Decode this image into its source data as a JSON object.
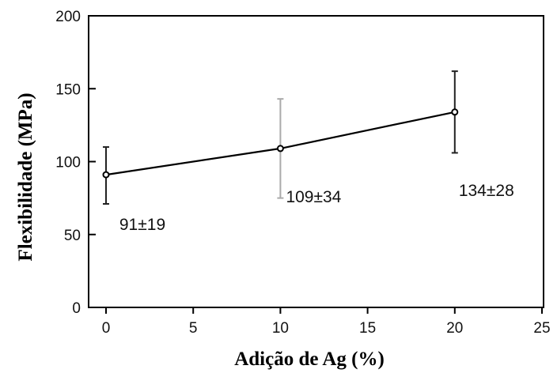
{
  "chart_data": {
    "type": "line",
    "xlabel": "Adição de Ag (%)",
    "ylabel": "Flexibilidade (MPa)",
    "xlim": [
      0,
      25
    ],
    "ylim": [
      0,
      200
    ],
    "xticks": [
      0,
      5,
      10,
      15,
      20,
      25
    ],
    "yticks": [
      0,
      50,
      100,
      150,
      200
    ],
    "grid": false,
    "series": [
      {
        "x": [
          0,
          10,
          20
        ],
        "y": [
          91,
          109,
          134
        ],
        "error_bars": [
          {
            "lower": 71,
            "upper": 110
          },
          {
            "lower": 75,
            "upper": 143
          },
          {
            "lower": 106,
            "upper": 162
          }
        ],
        "error_bar_colors": [
          "#222222",
          "#aaaaaa",
          "#222222"
        ],
        "labels": [
          "91±19",
          "109±34",
          "134±28"
        ]
      }
    ],
    "colors": {
      "line": "#000000",
      "axis": "#000000"
    }
  }
}
